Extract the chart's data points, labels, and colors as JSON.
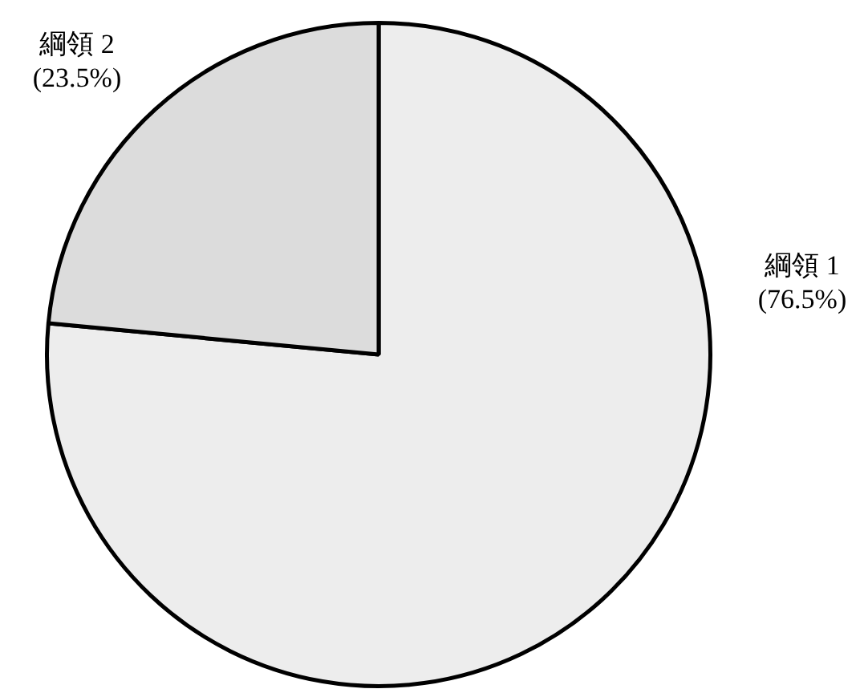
{
  "chart_data": {
    "type": "pie",
    "categories": [
      "綱領 1",
      "綱領 2"
    ],
    "values": [
      76.5,
      23.5
    ],
    "value_labels": [
      "(76.5%)",
      "(23.5%)"
    ],
    "colors": [
      "#ededed",
      "#dcdcdc"
    ],
    "legend": false
  }
}
